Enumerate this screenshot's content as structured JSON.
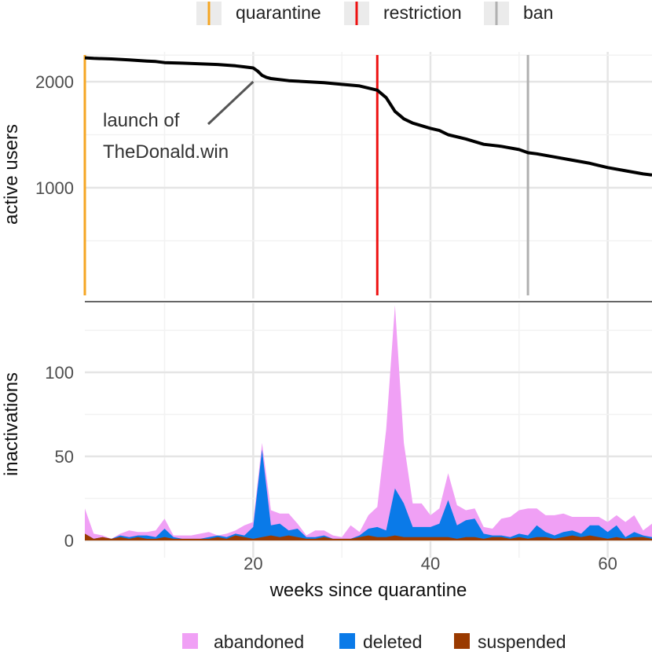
{
  "chart_data": [
    {
      "type": "line",
      "xlabel": "",
      "ylabel": "active users",
      "xlim": [
        1,
        65
      ],
      "ylim": [
        1000,
        2250
      ],
      "y_ticks": [
        1000,
        2000
      ],
      "grid": true,
      "legend": {
        "placement": "top",
        "entries": [
          {
            "label": "quarantine",
            "color": "#f5a623"
          },
          {
            "label": "restriction",
            "color": "#ee1111"
          },
          {
            "label": "ban",
            "color": "#b0b0b0"
          }
        ]
      },
      "events": [
        {
          "label": "quarantine",
          "x": 1,
          "color": "#f5a623"
        },
        {
          "label": "restriction",
          "x": 34,
          "color": "#ee1111"
        },
        {
          "label": "ban",
          "x": 51,
          "color": "#b0b0b0"
        }
      ],
      "annotation": {
        "line1": "launch of",
        "line2": "TheDonald.win",
        "x": 20,
        "y": 2000
      },
      "series": [
        {
          "color": "#000000",
          "x": [
            1,
            2,
            4,
            6,
            8,
            9,
            10,
            12,
            14,
            16,
            18,
            19,
            20,
            20.5,
            21,
            21.5,
            22,
            24,
            26,
            28,
            30,
            32,
            34,
            35,
            36,
            37,
            38,
            40,
            41,
            42,
            44,
            46,
            48,
            50,
            51,
            52,
            54,
            56,
            58,
            59,
            60,
            62,
            64,
            65
          ],
          "values": [
            2225,
            2220,
            2215,
            2205,
            2195,
            2190,
            2180,
            2175,
            2168,
            2162,
            2150,
            2140,
            2130,
            2100,
            2060,
            2040,
            2030,
            2010,
            2000,
            1990,
            1975,
            1960,
            1920,
            1850,
            1720,
            1650,
            1610,
            1560,
            1540,
            1500,
            1460,
            1410,
            1390,
            1360,
            1330,
            1320,
            1290,
            1260,
            1230,
            1210,
            1190,
            1160,
            1130,
            1120
          ]
        }
      ]
    },
    {
      "type": "area",
      "xlabel": "weeks since quarantine",
      "ylabel": "inactivations",
      "xlim": [
        1,
        65
      ],
      "ylim": [
        0,
        140
      ],
      "y_ticks": [
        0,
        50,
        100
      ],
      "x_ticks": [
        20,
        40,
        60
      ],
      "x_tick_labels": [
        "20",
        "40",
        "60"
      ],
      "y_tick_labels": [
        "0",
        "50",
        "100"
      ],
      "grid": true,
      "stacked": true,
      "legend": {
        "placement": "bottom",
        "entries": [
          {
            "label": "abandoned",
            "color": "#f0a0f5"
          },
          {
            "label": "deleted",
            "color": "#0a7ae8"
          },
          {
            "label": "suspended",
            "color": "#9a3a00"
          }
        ]
      },
      "x": [
        1,
        2,
        3,
        4,
        5,
        6,
        7,
        8,
        9,
        10,
        11,
        12,
        13,
        14,
        15,
        16,
        17,
        18,
        19,
        20,
        21,
        22,
        23,
        24,
        25,
        26,
        27,
        28,
        29,
        30,
        31,
        32,
        33,
        34,
        35,
        36,
        37,
        38,
        39,
        40,
        41,
        42,
        43,
        44,
        45,
        46,
        47,
        48,
        49,
        50,
        51,
        52,
        53,
        54,
        55,
        56,
        57,
        58,
        59,
        60,
        61,
        62,
        63,
        64,
        65
      ],
      "series": [
        {
          "name": "suspended",
          "color": "#9a3a00",
          "values": [
            4,
            1,
            2,
            1,
            2,
            1,
            2,
            1,
            1,
            2,
            1,
            1,
            1,
            1,
            1,
            2,
            1,
            3,
            2,
            1,
            2,
            3,
            2,
            3,
            2,
            1,
            1,
            2,
            1,
            1,
            1,
            2,
            3,
            2,
            2,
            3,
            2,
            2,
            2,
            2,
            2,
            2,
            1,
            2,
            2,
            1,
            2,
            2,
            1,
            2,
            1,
            2,
            2,
            1,
            2,
            3,
            2,
            3,
            2,
            1,
            2,
            1,
            2,
            2,
            1
          ]
        },
        {
          "name": "deleted",
          "color": "#0a7ae8",
          "values": [
            0,
            0,
            0,
            0,
            1,
            1,
            1,
            2,
            1,
            5,
            1,
            0,
            0,
            0,
            1,
            1,
            1,
            1,
            1,
            7,
            52,
            6,
            8,
            3,
            5,
            1,
            1,
            1,
            0,
            0,
            0,
            1,
            4,
            6,
            4,
            28,
            20,
            6,
            6,
            6,
            8,
            22,
            8,
            10,
            11,
            3,
            1,
            1,
            1,
            2,
            2,
            7,
            3,
            2,
            3,
            3,
            2,
            6,
            7,
            4,
            7,
            1,
            3,
            1,
            1
          ]
        },
        {
          "name": "abandoned",
          "color": "#f0a0f5",
          "values": [
            15,
            3,
            1,
            0,
            1,
            4,
            2,
            2,
            4,
            6,
            1,
            2,
            2,
            3,
            3,
            0,
            2,
            2,
            6,
            3,
            4,
            9,
            6,
            10,
            3,
            1,
            4,
            3,
            2,
            1,
            8,
            2,
            8,
            12,
            60,
            109,
            36,
            14,
            14,
            7,
            9,
            16,
            12,
            6,
            6,
            4,
            4,
            10,
            12,
            14,
            16,
            10,
            10,
            12,
            11,
            8,
            10,
            5,
            5,
            6,
            6,
            9,
            10,
            3,
            8
          ]
        }
      ]
    }
  ]
}
